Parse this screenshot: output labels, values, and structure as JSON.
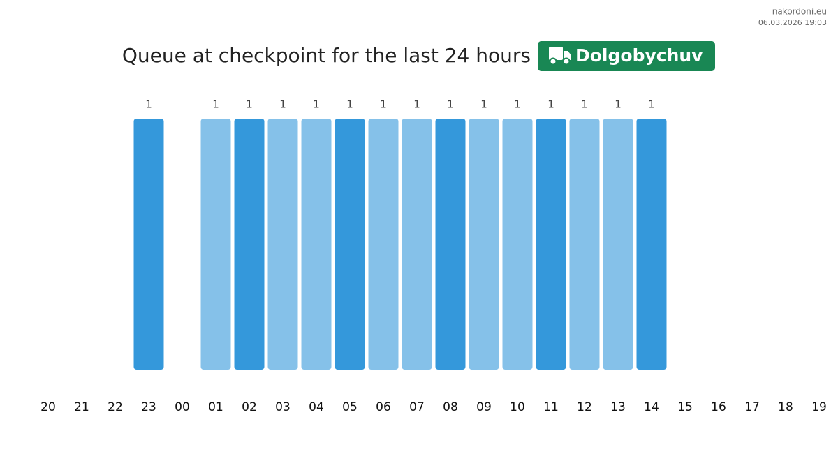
{
  "site": "nakordoni.eu",
  "timestamp": "06.03.2026 19:03",
  "chart_data": {
    "type": "bar",
    "title": "Queue at checkpoint for the last 24 hours",
    "checkpoint": "Dolgobychuv",
    "categories": [
      "20",
      "21",
      "22",
      "23",
      "00",
      "01",
      "02",
      "03",
      "04",
      "05",
      "06",
      "07",
      "08",
      "09",
      "10",
      "11",
      "12",
      "13",
      "14",
      "15",
      "16",
      "17",
      "18",
      "19"
    ],
    "values": [
      null,
      null,
      null,
      1,
      null,
      1,
      1,
      1,
      1,
      1,
      1,
      1,
      1,
      1,
      1,
      1,
      1,
      1,
      1,
      null,
      null,
      null,
      null,
      null
    ],
    "colors": [
      null,
      null,
      null,
      "#3498db",
      null,
      "#85c1e9",
      "#3498db",
      "#85c1e9",
      "#85c1e9",
      "#3498db",
      "#85c1e9",
      "#85c1e9",
      "#3498db",
      "#85c1e9",
      "#85c1e9",
      "#3498db",
      "#85c1e9",
      "#85c1e9",
      "#3498db",
      null,
      null,
      null,
      null,
      null
    ],
    "ylim": [
      0,
      1
    ]
  }
}
